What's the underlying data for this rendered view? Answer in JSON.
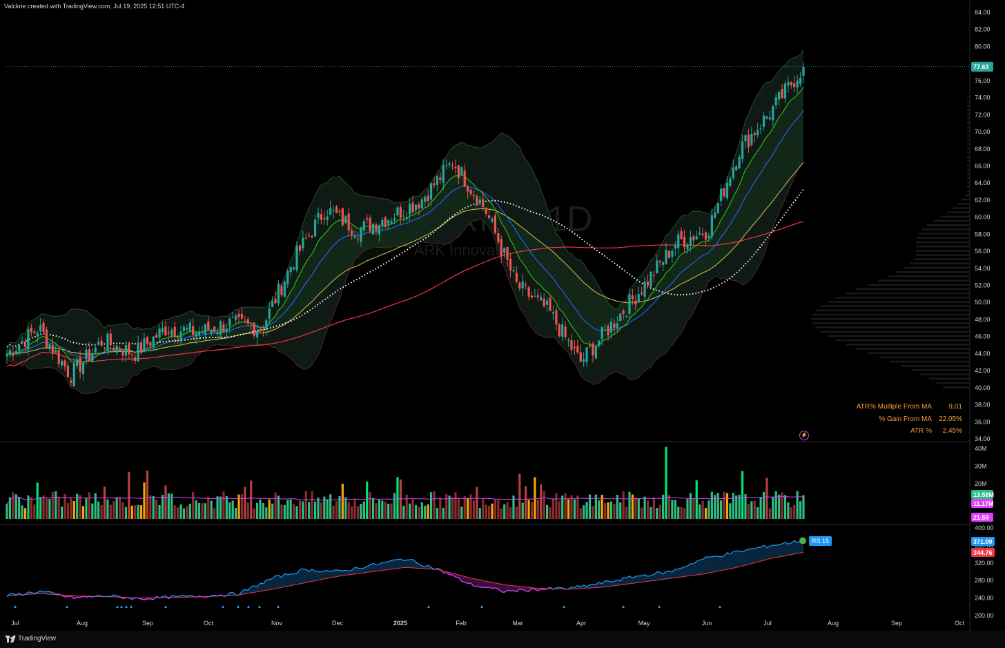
{
  "header": {
    "attribution": "Valckrie created with TradingView.com, Jul 19, 2025 12:51 UTC-4"
  },
  "footer": {
    "brand": "TradingView"
  },
  "watermark": {
    "symbol": "ARKK, 1D",
    "name": "ARK Innovation ETF"
  },
  "stats_table": {
    "rows": [
      {
        "label": "ATR% Multiple From MA",
        "value": "9.01"
      },
      {
        "label": "% Gain From MA",
        "value": "22.05%"
      },
      {
        "label": "ATR %",
        "value": "2.45%"
      }
    ]
  },
  "colors": {
    "up": "#26a69a",
    "down": "#ef5350",
    "vol_up": "#2ebd85",
    "vol_down": "#8a2e2e",
    "vol_high": "#00e676",
    "vol_low": "#f7a600",
    "ema_fast": "#2cc70f",
    "ema_mid": "#2962ff",
    "ema_slow": "#c9b84d",
    "sma200": "#f23645",
    "dotted": "#ffffff",
    "rs_line": "#2196f3",
    "rs_ma": "#f23645",
    "rs_down": "#e040fb",
    "bb": "#2e5e2e",
    "vol_ma": "#e040fb"
  },
  "chart_data": [
    {
      "type": "candlestick",
      "title": "ARKK, 1D",
      "subtitle": "ARK Innovation ETF",
      "x_tick_labels": [
        "Jul",
        "Aug",
        "Sep",
        "Oct",
        "Nov",
        "Dec",
        "2025",
        "Feb",
        "Mar",
        "Apr",
        "May",
        "Jun",
        "Jul",
        "Aug",
        "Sep",
        "Oct"
      ],
      "y_tick_labels": [
        "84.00",
        "82.00",
        "80.00",
        "78.00",
        "76.00",
        "74.00",
        "72.00",
        "70.00",
        "68.00",
        "66.00",
        "64.00",
        "62.00",
        "60.00",
        "58.00",
        "56.00",
        "54.00",
        "52.00",
        "50.00",
        "48.00",
        "46.00",
        "44.00",
        "42.00",
        "40.00",
        "38.00",
        "36.00",
        "34.00"
      ],
      "ylim": [
        34,
        84
      ],
      "last_price": "77.63",
      "close_path": [
        [
          "Jul",
          44.0
        ],
        [
          "Jul",
          47.0
        ],
        [
          "Aug",
          41.5
        ],
        [
          "Aug",
          45.5
        ],
        [
          "Sep",
          44.0
        ],
        [
          "Sep",
          47.0
        ],
        [
          "Oct",
          46.5
        ],
        [
          "Oct",
          47.5
        ],
        [
          "Nov",
          47.0
        ],
        [
          "Nov",
          55.0
        ],
        [
          "Dec",
          61.0
        ],
        [
          "Dec",
          58.5
        ],
        [
          "2025",
          60.0
        ],
        [
          "2025",
          62.0
        ],
        [
          "Feb",
          66.5
        ],
        [
          "Feb",
          61.0
        ],
        [
          "Mar",
          52.0
        ],
        [
          "Mar",
          49.0
        ],
        [
          "Apr",
          43.0
        ],
        [
          "Apr",
          47.5
        ],
        [
          "May",
          52.0
        ],
        [
          "May",
          57.0
        ],
        [
          "Jun",
          58.5
        ],
        [
          "Jun",
          68.0
        ],
        [
          "Jul",
          72.5
        ],
        [
          "Jul",
          77.63
        ]
      ]
    },
    {
      "type": "bar",
      "title": "Volume",
      "y_tick_labels": [
        "40M",
        "30M",
        "20M"
      ],
      "ylim": [
        0,
        42
      ],
      "last_values": [
        "13.58M",
        "11.17M",
        "21.59"
      ]
    },
    {
      "type": "line",
      "title": "RS",
      "y_tick_labels": [
        "400.00",
        "360.00",
        "320.00",
        "280.00",
        "240.00",
        "200.00"
      ],
      "ylim": [
        195,
        405
      ],
      "badge": "RS 15",
      "last_values": [
        "371.09",
        "344.76"
      ],
      "series": [
        {
          "name": "RS",
          "values": [
            245,
            255,
            240,
            245,
            238,
            242,
            245,
            250,
            285,
            305,
            300,
            315,
            330,
            305,
            270,
            255,
            260,
            262,
            275,
            290,
            300,
            330,
            345,
            360,
            371.09
          ]
        },
        {
          "name": "RS MA",
          "values": [
            245,
            250,
            245,
            243,
            240,
            241,
            243,
            247,
            260,
            275,
            290,
            300,
            310,
            305,
            285,
            270,
            262,
            260,
            265,
            275,
            285,
            295,
            310,
            330,
            344.76
          ]
        }
      ]
    }
  ]
}
